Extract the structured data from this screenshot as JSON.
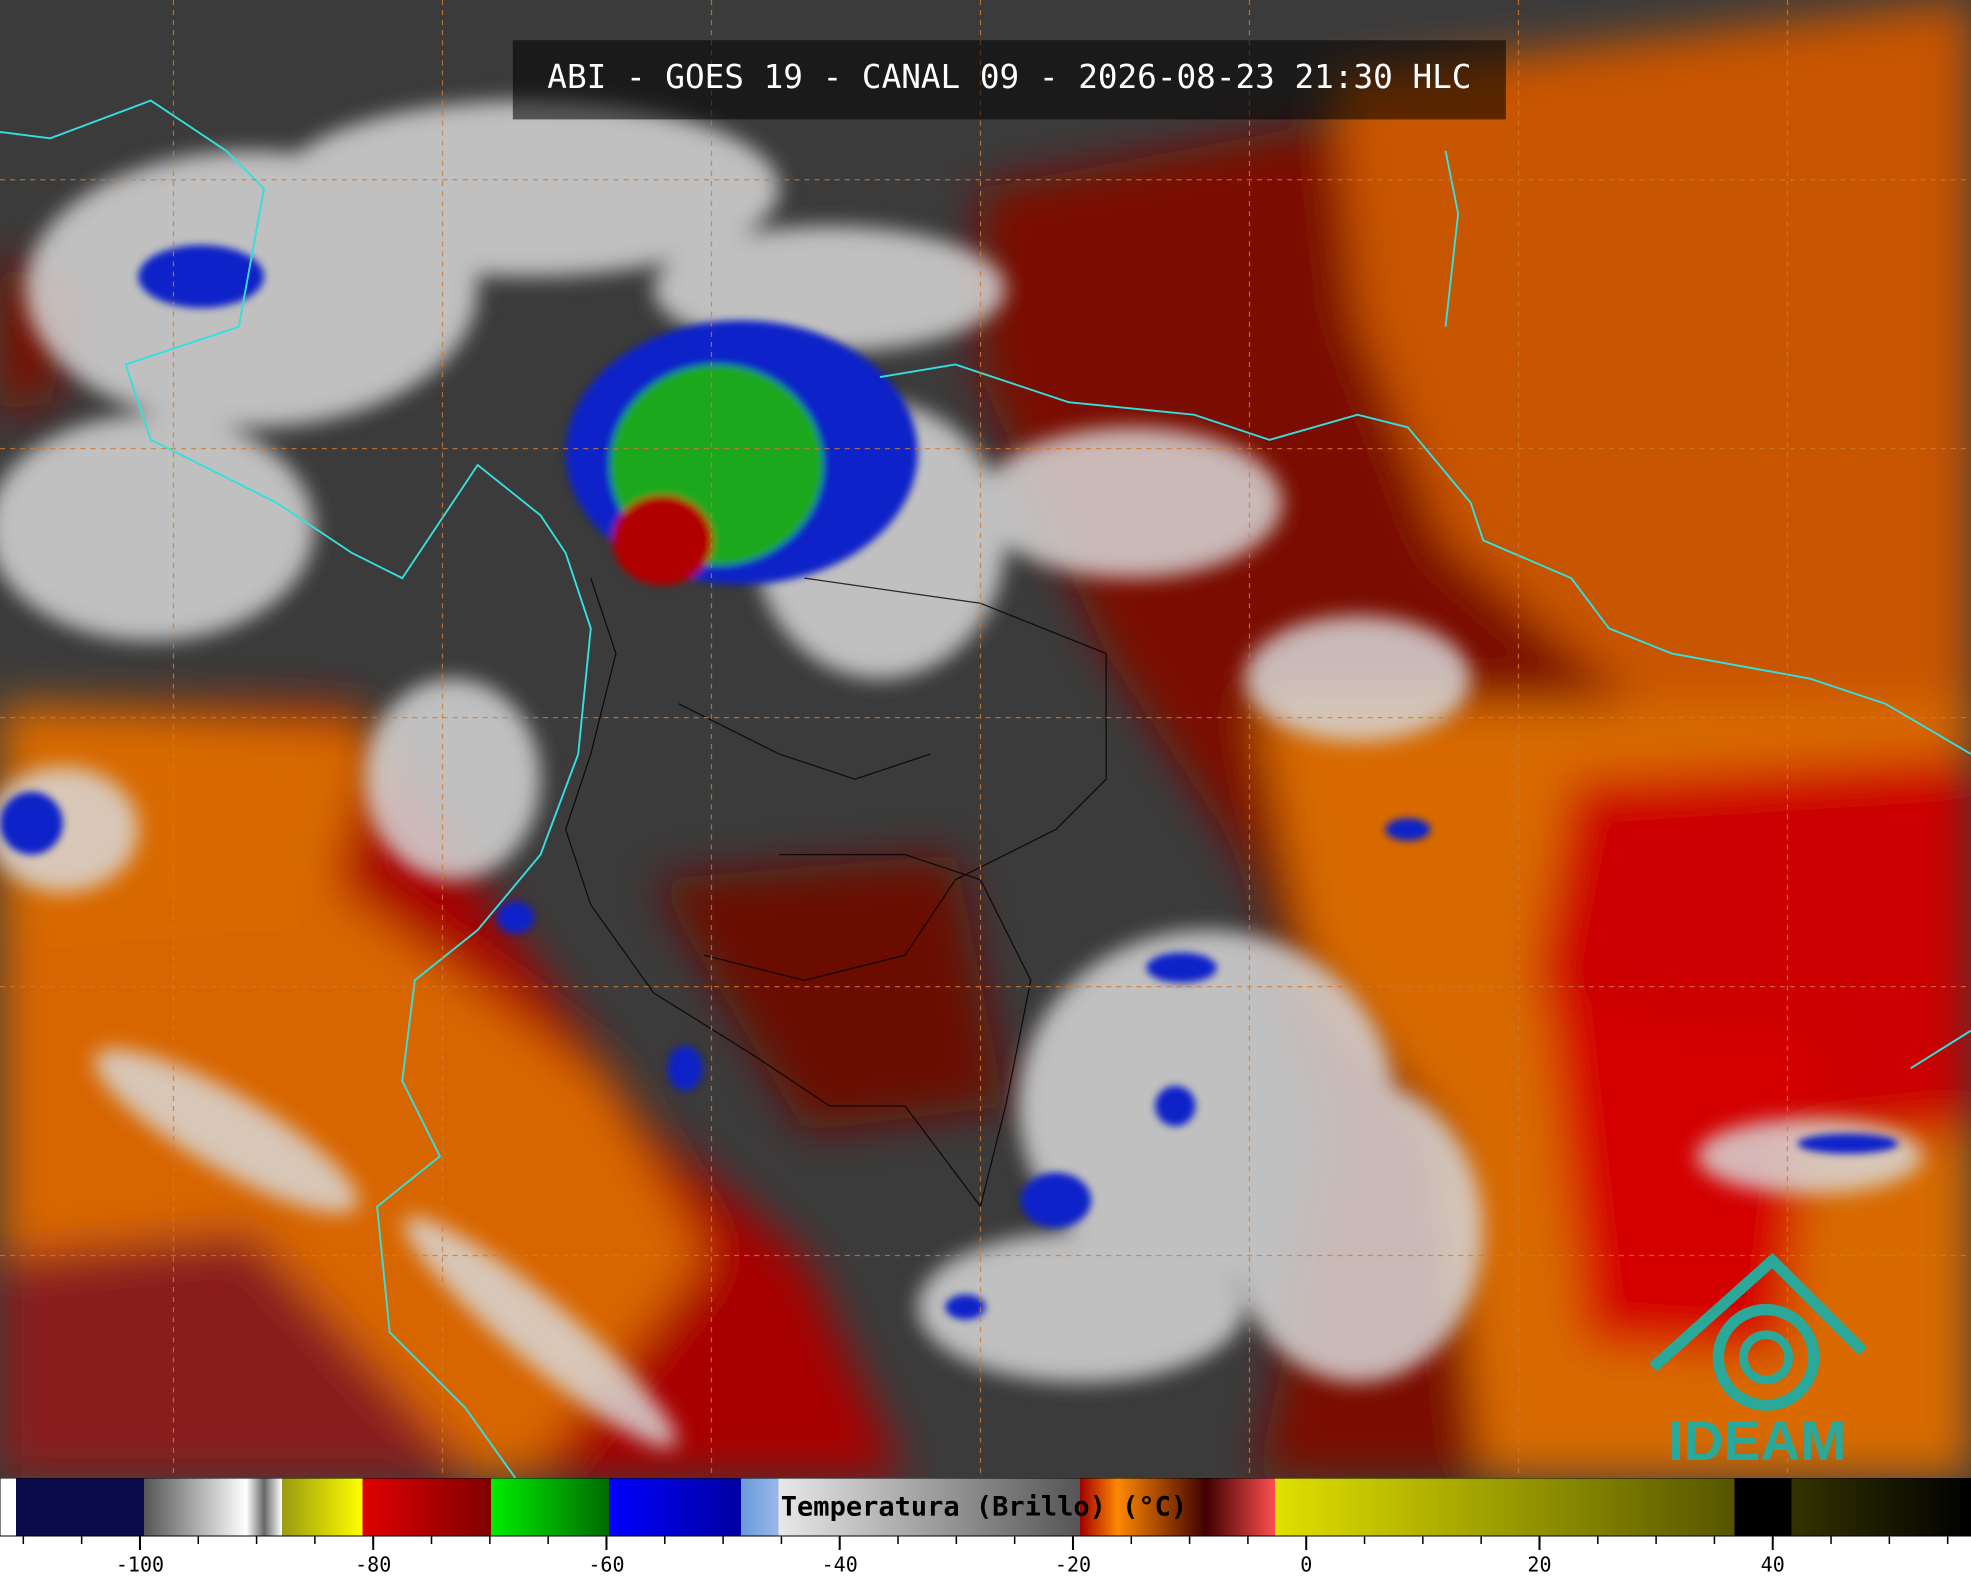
{
  "header": {
    "title": "ABI - GOES 19 - CANAL 09 - 2026-08-23 21:30 HLC"
  },
  "colorbar": {
    "label": "Temperatura (Brillo) (°C)",
    "xlim": [
      -112,
      57
    ],
    "xticks": [
      -100,
      -80,
      -60,
      -40,
      -20,
      0,
      20,
      40
    ]
  },
  "logo": {
    "text": "IDEAM"
  }
}
